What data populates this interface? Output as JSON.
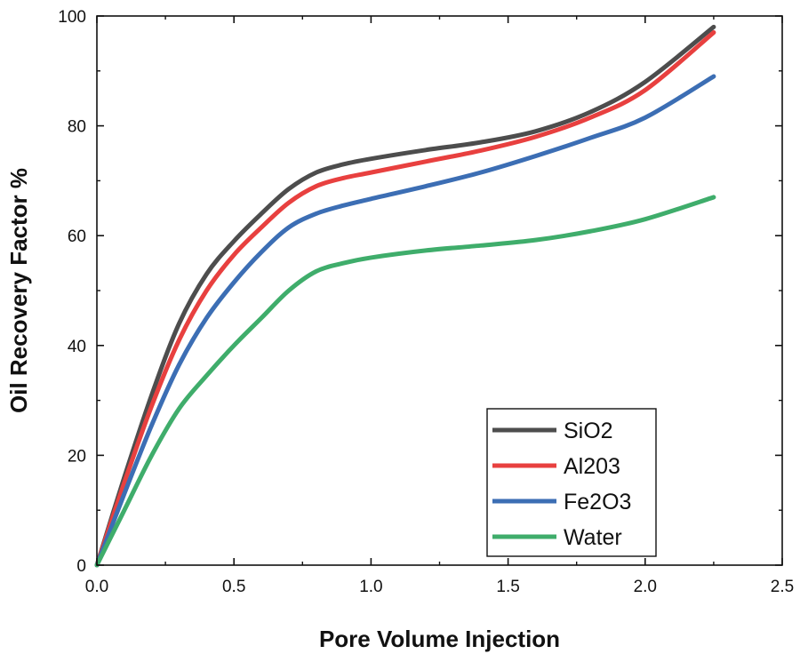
{
  "chart_data": {
    "type": "line",
    "title": "",
    "xlabel": "Pore Volume Injection",
    "ylabel": "Oil Recovery Factor %",
    "xlim": [
      0,
      2.5
    ],
    "ylim": [
      0,
      100
    ],
    "xticks": [
      0.0,
      0.5,
      1.0,
      1.5,
      2.0,
      2.5
    ],
    "xtick_labels": [
      "0.0",
      "0.5",
      "1.0",
      "1.5",
      "2.0",
      "2.5"
    ],
    "yticks": [
      0,
      20,
      40,
      60,
      80,
      100
    ],
    "ytick_labels": [
      "0",
      "20",
      "40",
      "60",
      "80",
      "100"
    ],
    "grid": false,
    "legend_position": "bottom-right",
    "x": [
      0.0,
      0.1,
      0.2,
      0.3,
      0.4,
      0.5,
      0.6,
      0.7,
      0.8,
      0.9,
      1.0,
      1.2,
      1.4,
      1.6,
      1.8,
      2.0,
      2.25
    ],
    "series": [
      {
        "name": "SiO2",
        "color": "#4d4d4d",
        "values": [
          0,
          16,
          31,
          44,
          53,
          59,
          64,
          68.5,
          71.5,
          73,
          74,
          75.6,
          77,
          79,
          82.5,
          88,
          98
        ]
      },
      {
        "name": "Al203",
        "color": "#e8403f",
        "values": [
          0,
          15,
          29,
          41,
          50,
          56.5,
          61.5,
          66,
          69,
          70.5,
          71.5,
          73.5,
          75.5,
          78,
          81.5,
          86.5,
          97
        ]
      },
      {
        "name": "Fe2O3",
        "color": "#3c6eb4",
        "values": [
          0,
          13,
          25.5,
          36.5,
          45,
          51.5,
          57,
          61.5,
          64,
          65.5,
          66.7,
          69,
          71.5,
          74.5,
          77.8,
          81.5,
          89
        ]
      },
      {
        "name": "Water",
        "color": "#3fad6b",
        "values": [
          0,
          10,
          20,
          28.5,
          34.5,
          40,
          45,
          50,
          53.5,
          55,
          56,
          57.3,
          58.2,
          59.2,
          60.8,
          63,
          67
        ]
      }
    ]
  }
}
